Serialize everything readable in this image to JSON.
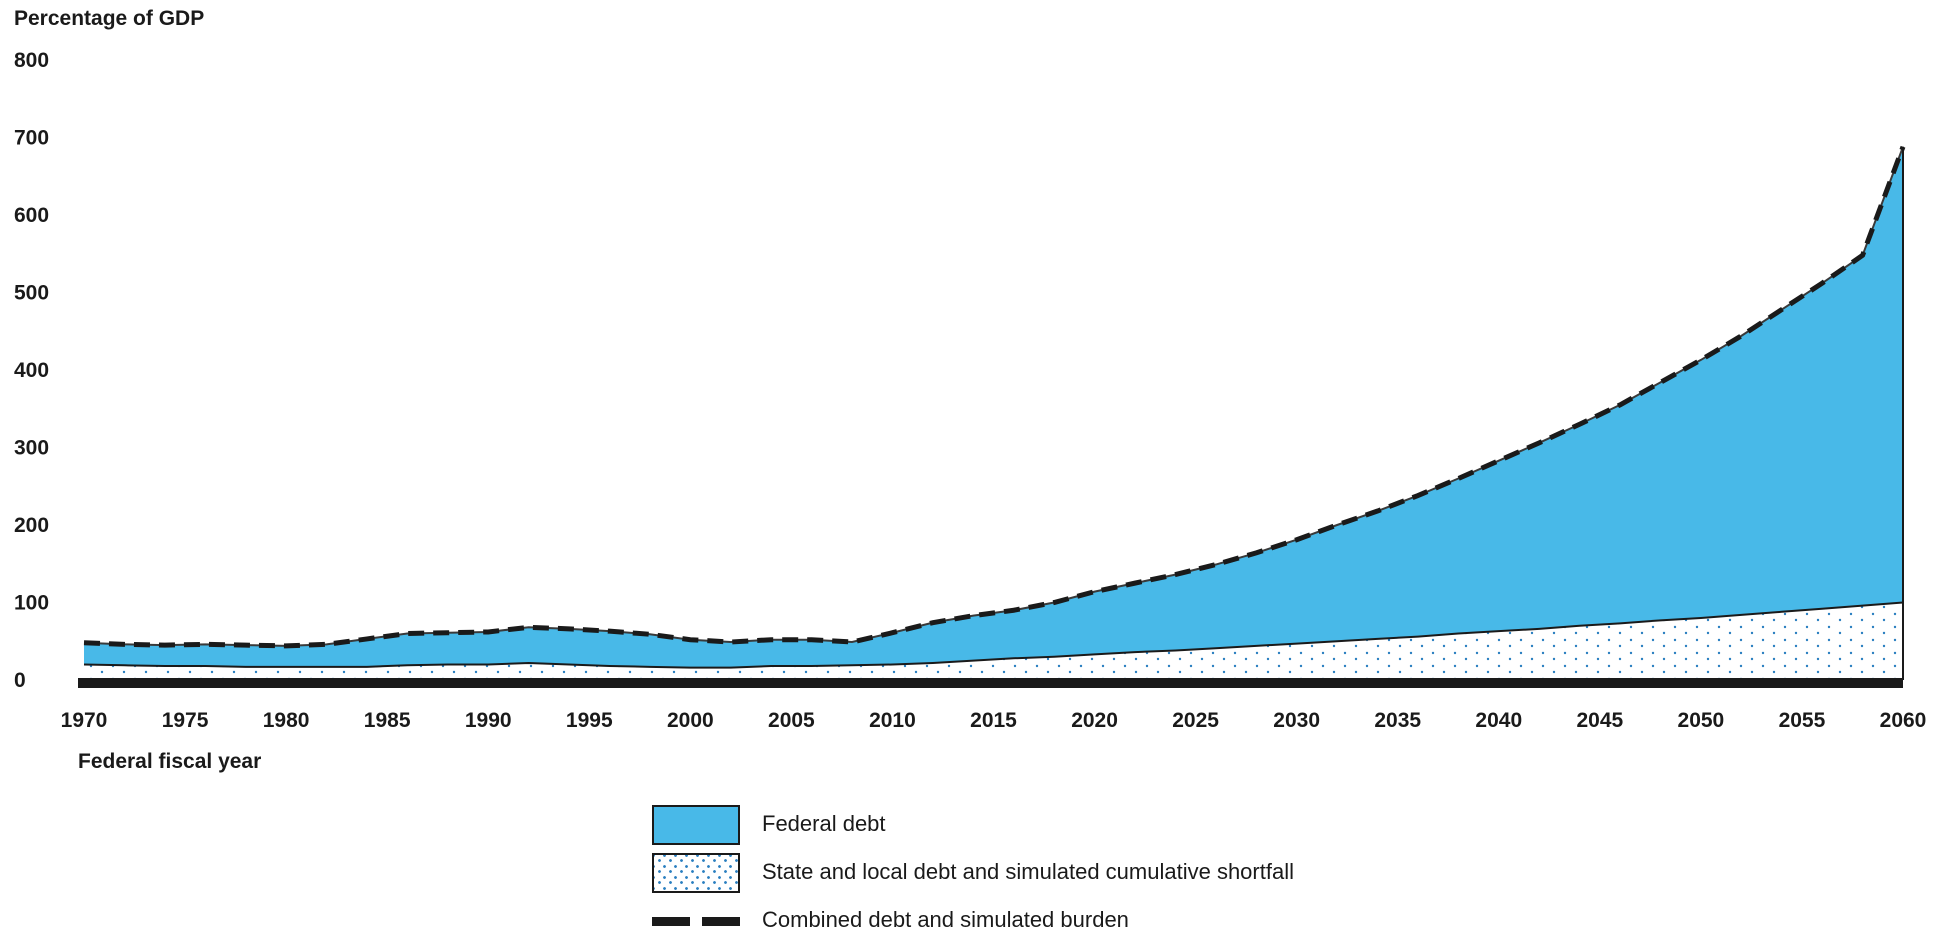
{
  "chart_data": {
    "type": "area",
    "ylabel": "Percentage of GDP",
    "xlabel": "Federal fiscal year",
    "xlim": [
      1970,
      2060
    ],
    "ylim": [
      0,
      800
    ],
    "x_ticks": [
      1970,
      1975,
      1980,
      1985,
      1990,
      1995,
      2000,
      2005,
      2010,
      2015,
      2020,
      2025,
      2030,
      2035,
      2040,
      2045,
      2050,
      2055,
      2060
    ],
    "y_ticks": [
      0,
      100,
      200,
      300,
      400,
      500,
      600,
      700,
      800
    ],
    "grid": false,
    "legend_placement": "bottom-center",
    "colors": {
      "federal": "#48b9e8",
      "state_dots": "#2a7fc0",
      "outline": "#1a1a1a"
    },
    "x": [
      1970,
      1972,
      1974,
      1976,
      1978,
      1980,
      1982,
      1984,
      1986,
      1988,
      1990,
      1992,
      1994,
      1996,
      1998,
      2000,
      2002,
      2004,
      2006,
      2008,
      2010,
      2012,
      2014,
      2016,
      2018,
      2020,
      2022,
      2024,
      2026,
      2028,
      2030,
      2032,
      2034,
      2036,
      2038,
      2040,
      2042,
      2044,
      2046,
      2048,
      2050,
      2052,
      2054,
      2056,
      2058,
      2060
    ],
    "series": [
      {
        "name": "State and local debt and simulated cumulative shortfall",
        "values": [
          20,
          19,
          18,
          18,
          17,
          17,
          17,
          17,
          19,
          20,
          20,
          22,
          20,
          18,
          17,
          16,
          16,
          18,
          18,
          19,
          20,
          22,
          25,
          28,
          30,
          33,
          36,
          38,
          41,
          44,
          47,
          50,
          53,
          56,
          60,
          63,
          66,
          70,
          73,
          77,
          80,
          84,
          88,
          92,
          96,
          100
        ]
      },
      {
        "name": "Federal debt",
        "values": [
          28,
          27,
          27,
          28,
          28,
          27,
          29,
          36,
          41,
          41,
          42,
          46,
          46,
          45,
          42,
          36,
          33,
          34,
          34,
          30,
          41,
          52,
          58,
          62,
          70,
          81,
          89,
          98,
          108,
          120,
          134,
          150,
          165,
          182,
          200,
          220,
          240,
          260,
          282,
          307,
          333,
          360,
          390,
          420,
          452,
          588
        ]
      },
      {
        "name": "Combined debt and simulated burden",
        "values": [
          48,
          46,
          45,
          46,
          45,
          44,
          46,
          53,
          60,
          61,
          62,
          68,
          66,
          63,
          59,
          52,
          49,
          52,
          52,
          49,
          61,
          74,
          83,
          90,
          100,
          114,
          125,
          136,
          149,
          164,
          181,
          200,
          218,
          238,
          260,
          283,
          306,
          330,
          355,
          384,
          413,
          444,
          478,
          512,
          548,
          688
        ]
      }
    ]
  }
}
